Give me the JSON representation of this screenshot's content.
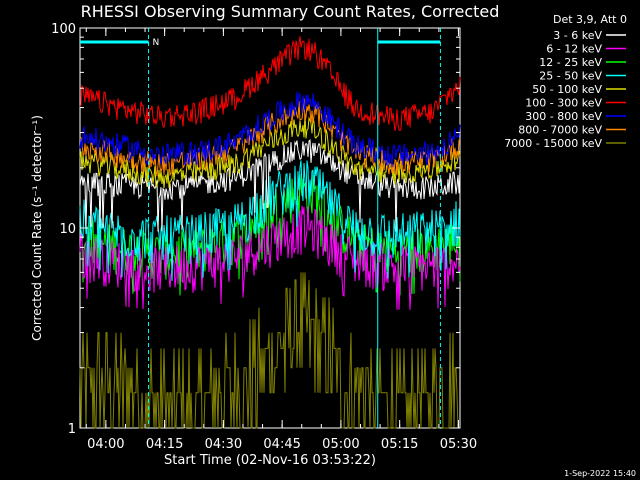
{
  "chart_data": {
    "type": "line",
    "title": "RHESSI Observing Summary Count Rates, Corrected",
    "ylabel": "Corrected Count Rate (s⁻¹ detector⁻¹)",
    "xlabel": "Start Time (02-Nov-16 03:53:22)",
    "y_scale": "log",
    "ylim": [
      1,
      100
    ],
    "y_ticks": [
      {
        "value": 1,
        "label": "1"
      },
      {
        "value": 10,
        "label": "10"
      },
      {
        "value": 100,
        "label": "100"
      }
    ],
    "x_minutes_range": [
      0,
      97
    ],
    "x_ticks": [
      {
        "minute": 6.6,
        "label": "04:00"
      },
      {
        "minute": 21.6,
        "label": "04:15"
      },
      {
        "minute": 36.6,
        "label": "04:30"
      },
      {
        "minute": 51.6,
        "label": "04:45"
      },
      {
        "minute": 66.6,
        "label": "05:00"
      },
      {
        "minute": 81.6,
        "label": "05:15"
      },
      {
        "minute": 96.6,
        "label": "05:30"
      }
    ],
    "legend_title": "Det 3,9, Att 0",
    "legend_position": "top-right",
    "series": [
      {
        "name": "3 - 6 keV",
        "color": "#ffffff",
        "x": [
          0,
          10,
          20,
          30,
          40,
          50,
          57,
          60,
          65,
          70,
          80,
          90,
          97
        ],
        "y": [
          17,
          16.5,
          16,
          16.5,
          18,
          22,
          25,
          24,
          21,
          18,
          16,
          16,
          17
        ]
      },
      {
        "name": "6 - 12 keV",
        "color": "#ff00ff",
        "x": [
          0,
          10,
          20,
          30,
          40,
          50,
          57,
          60,
          65,
          70,
          80,
          90,
          97
        ],
        "y": [
          7.5,
          6.8,
          6.4,
          6.6,
          7.2,
          9,
          10.2,
          9.8,
          8.2,
          7,
          6.5,
          6.5,
          7
        ]
      },
      {
        "name": "12 - 25 keV",
        "color": "#00ff00",
        "x": [
          0,
          10,
          20,
          30,
          40,
          50,
          57,
          60,
          65,
          70,
          80,
          90,
          97
        ],
        "y": [
          9,
          8,
          7.5,
          7.8,
          9,
          13,
          15.5,
          14.5,
          11,
          8.5,
          7.6,
          8,
          9
        ]
      },
      {
        "name": "25 - 50 keV",
        "color": "#00ffff",
        "x": [
          0,
          10,
          20,
          30,
          40,
          50,
          57,
          60,
          65,
          70,
          80,
          90,
          97
        ],
        "y": [
          11,
          9.5,
          9,
          9.2,
          10.5,
          15,
          17.5,
          16.5,
          12.5,
          10,
          9.2,
          9.8,
          11
        ]
      },
      {
        "name": "50 - 100 keV",
        "color": "#dddd00",
        "x": [
          0,
          10,
          20,
          30,
          40,
          50,
          57,
          60,
          65,
          70,
          80,
          90,
          97
        ],
        "y": [
          22,
          20,
          18,
          19,
          21,
          28,
          33,
          31,
          25,
          20,
          19,
          20,
          22
        ]
      },
      {
        "name": "100 - 300 keV",
        "color": "#ff0000",
        "x": [
          0,
          10,
          20,
          30,
          40,
          50,
          57,
          60,
          65,
          70,
          80,
          90,
          97
        ],
        "y": [
          46,
          40,
          36,
          38,
          45,
          65,
          82,
          75,
          55,
          40,
          35,
          38,
          52
        ]
      },
      {
        "name": "300 - 800 keV",
        "color": "#0000ff",
        "x": [
          0,
          10,
          20,
          30,
          40,
          50,
          57,
          60,
          65,
          70,
          80,
          90,
          97
        ],
        "y": [
          29,
          26,
          23,
          24,
          27,
          37,
          44,
          42,
          33,
          26,
          23,
          24,
          29
        ]
      },
      {
        "name": "800 - 7000 keV",
        "color": "#ff8800",
        "x": [
          0,
          10,
          20,
          30,
          40,
          50,
          57,
          60,
          65,
          70,
          80,
          90,
          97
        ],
        "y": [
          26,
          23,
          21,
          22,
          25,
          34,
          40,
          38,
          30,
          24,
          21,
          22,
          26
        ]
      },
      {
        "name": "7000 - 15000 keV",
        "color": "#808000",
        "x": [
          0,
          10,
          20,
          30,
          40,
          50,
          57,
          60,
          65,
          70,
          80,
          90,
          97
        ],
        "y": [
          1.5,
          1.4,
          1.2,
          1.2,
          1.5,
          2.2,
          3,
          2.6,
          2,
          1.4,
          1.2,
          1.3,
          1.5
        ]
      }
    ],
    "annotations": {
      "flag_label": "N",
      "segments": [
        {
          "type": "observing",
          "start_minute": 0,
          "end_minute": 17.5
        },
        {
          "type": "observing",
          "start_minute": 76,
          "end_minute": 92
        }
      ],
      "boundaries_dashed_minutes": [
        17.5,
        92
      ],
      "boundaries_solid_minutes": [
        76
      ]
    }
  },
  "footer": {
    "timestamp": "1-Sep-2022 15:40"
  },
  "colors": {
    "background": "#000000",
    "axes": "#ffffff",
    "annotation": "#00ffff"
  }
}
